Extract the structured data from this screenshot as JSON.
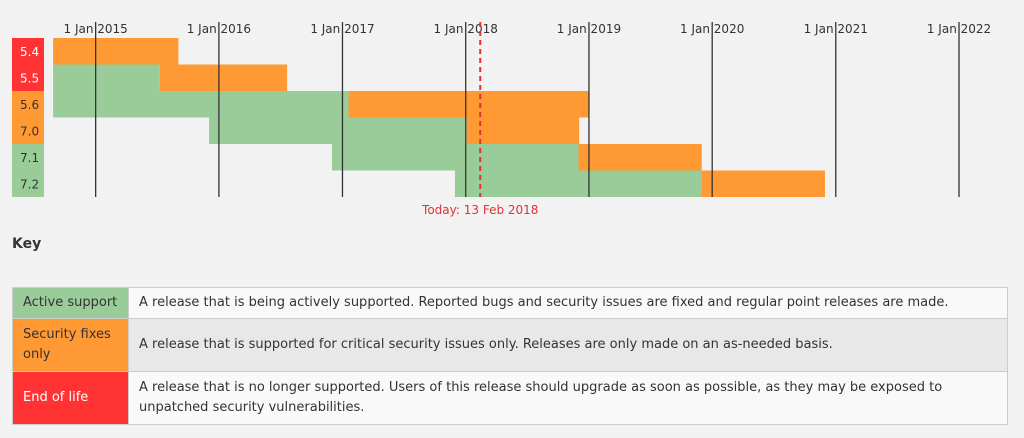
{
  "chart_data": {
    "type": "gantt",
    "x_ticks": [
      "1 Jan 2015",
      "1 Jan 2016",
      "1 Jan 2017",
      "1 Jan 2018",
      "1 Jan 2019",
      "1 Jan 2020",
      "1 Jan 2021",
      "1 Jan 2022"
    ],
    "x_range": [
      "2014-08-01",
      "2022-06-01"
    ],
    "today": {
      "date": "2018-02-13",
      "label": "Today: 13 Feb 2018"
    },
    "versions": [
      {
        "branch": "5.4",
        "status": "eol",
        "initial_release": "2014-08-28",
        "active_support_until": "2014-08-28",
        "security_support_until": "2015-09-03"
      },
      {
        "branch": "5.5",
        "status": "eol",
        "initial_release": "2014-08-28",
        "active_support_until": "2015-07-10",
        "security_support_until": "2016-07-21"
      },
      {
        "branch": "5.6",
        "status": "security",
        "initial_release": "2014-08-28",
        "active_support_until": "2017-01-19",
        "security_support_until": "2018-12-31"
      },
      {
        "branch": "7.0",
        "status": "security",
        "initial_release": "2015-12-03",
        "active_support_until": "2018-01-04",
        "security_support_until": "2018-12-03"
      },
      {
        "branch": "7.1",
        "status": "active",
        "initial_release": "2016-12-01",
        "active_support_until": "2018-12-01",
        "security_support_until": "2019-12-01"
      },
      {
        "branch": "7.2",
        "status": "active",
        "initial_release": "2017-11-30",
        "active_support_until": "2019-11-30",
        "security_support_until": "2020-11-30"
      }
    ],
    "colors": {
      "active": "#99cc99",
      "security": "#ff9933",
      "eol": "#ff3333",
      "today": "#dd3333",
      "grid": "#333333"
    }
  },
  "key": {
    "heading": "Key",
    "rows": [
      {
        "label": "Active support",
        "description": "A release that is being actively supported. Reported bugs and security issues are fixed and regular point releases are made."
      },
      {
        "label": "Security fixes only",
        "description": "A release that is supported for critical security issues only. Releases are only made on an as-needed basis."
      },
      {
        "label": "End of life",
        "description": "A release that is no longer supported. Users of this release should upgrade as soon as possible, as they may be exposed to unpatched security vulnerabilities."
      }
    ]
  }
}
